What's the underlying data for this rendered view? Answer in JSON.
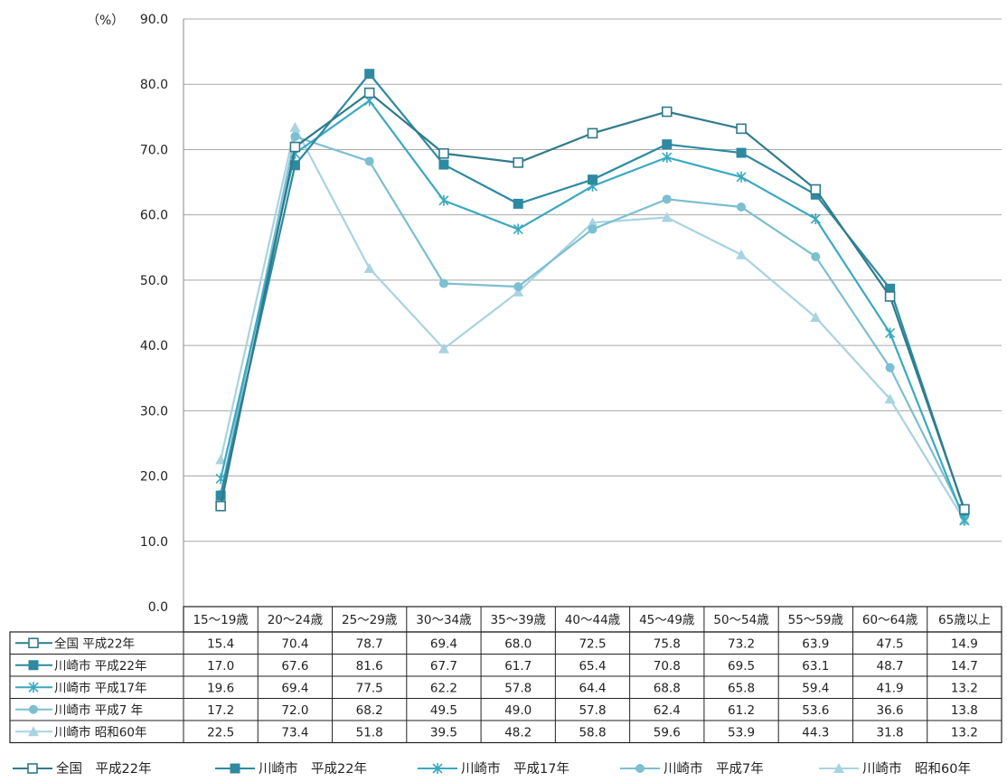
{
  "chart_data": {
    "type": "line",
    "y_unit": "（%）",
    "ylim": [
      0,
      90
    ],
    "yticks": [
      "0.0",
      "10.0",
      "20.0",
      "30.0",
      "40.0",
      "50.0",
      "60.0",
      "70.0",
      "80.0",
      "90.0"
    ],
    "grid": true,
    "legend_position": "bottom",
    "categories": [
      "15～19歳",
      "20～24歳",
      "25～29歳",
      "30～34歳",
      "35～39歳",
      "40～44歳",
      "45～49歳",
      "50～54歳",
      "55～59歳",
      "60～64歳",
      "65歳以上"
    ],
    "series": [
      {
        "name": "全国 平成22年",
        "legend_label": "全国　平成22年",
        "color": "#2f7a8c",
        "marker": "square-open",
        "values": [
          15.4,
          70.4,
          78.7,
          69.4,
          68.0,
          72.5,
          75.8,
          73.2,
          63.9,
          47.5,
          14.9
        ],
        "labels": [
          "15.4",
          "70.4",
          "78.7",
          "69.4",
          "68.0",
          "72.5",
          "75.8",
          "73.2",
          "63.9",
          "47.5",
          "14.9"
        ]
      },
      {
        "name": "川崎市 平成22年",
        "legend_label": "川崎市　平成22年",
        "color": "#2d8aa0",
        "marker": "square-filled",
        "values": [
          17.0,
          67.6,
          81.6,
          67.7,
          61.7,
          65.4,
          70.8,
          69.5,
          63.1,
          48.7,
          14.7
        ],
        "labels": [
          "17.0",
          "67.6",
          "81.6",
          "67.7",
          "61.7",
          "65.4",
          "70.8",
          "69.5",
          "63.1",
          "48.7",
          "14.7"
        ]
      },
      {
        "name": "川崎市 平成17年",
        "legend_label": "川崎市　平成17年",
        "color": "#3aa9c0",
        "marker": "star",
        "values": [
          19.6,
          69.4,
          77.5,
          62.2,
          57.8,
          64.4,
          68.8,
          65.8,
          59.4,
          41.9,
          13.2
        ],
        "labels": [
          "19.6",
          "69.4",
          "77.5",
          "62.2",
          "57.8",
          "64.4",
          "68.8",
          "65.8",
          "59.4",
          "41.9",
          "13.2"
        ]
      },
      {
        "name": "川崎市 平成7 年",
        "legend_label": "川崎市　平成7年",
        "color": "#7cbfd0",
        "marker": "circle",
        "values": [
          17.2,
          72.0,
          68.2,
          49.5,
          49.0,
          57.8,
          62.4,
          61.2,
          53.6,
          36.6,
          13.8
        ],
        "labels": [
          "17.2",
          "72.0",
          "68.2",
          "49.5",
          "49.0",
          "57.8",
          "62.4",
          "61.2",
          "53.6",
          "36.6",
          "13.8"
        ]
      },
      {
        "name": "川崎市 昭和60年",
        "legend_label": "川崎市　昭和60年",
        "color": "#a9d3e0",
        "marker": "triangle",
        "values": [
          22.5,
          73.4,
          51.8,
          39.5,
          48.2,
          58.8,
          59.6,
          53.9,
          44.3,
          31.8,
          13.2
        ],
        "labels": [
          "22.5",
          "73.4",
          "51.8",
          "39.5",
          "48.2",
          "58.8",
          "59.6",
          "53.9",
          "44.3",
          "31.8",
          "13.2"
        ]
      }
    ]
  }
}
